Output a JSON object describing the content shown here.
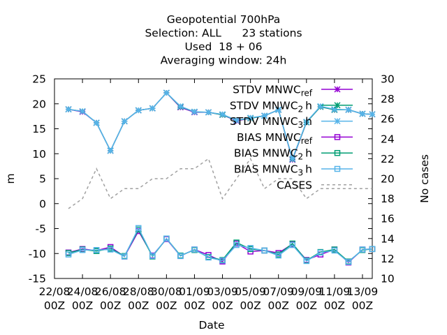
{
  "chart_data": {
    "type": "line",
    "title_lines": [
      "Geopotential 700hPa",
      "Selection: ALL      23 stations",
      "Used  18 + 06",
      "Averaging window: 24h"
    ],
    "xlabel": "Date",
    "ylabel": "m",
    "y2label": "No cases",
    "ylim": [
      -15,
      25
    ],
    "y2lim": [
      10,
      30
    ],
    "y_ticks": [
      "-15",
      "-10",
      "-5",
      "0",
      "5",
      "10",
      "15",
      "20",
      "25"
    ],
    "y2_ticks": [
      "10",
      "12",
      "14",
      "16",
      "18",
      "20",
      "22",
      "24",
      "26",
      "28",
      "30"
    ],
    "x_ticks": [
      {
        "d": 0,
        "top": "22/08",
        "bottom": "00Z"
      },
      {
        "d": 2,
        "top": "24/08",
        "bottom": "00Z"
      },
      {
        "d": 4,
        "top": "26/08",
        "bottom": "00Z"
      },
      {
        "d": 6,
        "top": "28/08",
        "bottom": "00Z"
      },
      {
        "d": 8,
        "top": "30/08",
        "bottom": "00Z"
      },
      {
        "d": 10,
        "top": "01/09",
        "bottom": "00Z"
      },
      {
        "d": 12,
        "top": "03/09",
        "bottom": "00Z"
      },
      {
        "d": 14,
        "top": "05/09",
        "bottom": "00Z"
      },
      {
        "d": 16,
        "top": "07/09",
        "bottom": "00Z"
      },
      {
        "d": 18,
        "top": "09/09",
        "bottom": "00Z"
      },
      {
        "d": 20,
        "top": "11/09",
        "bottom": "00Z"
      },
      {
        "d": 22,
        "top": "13/09",
        "bottom": "00Z"
      }
    ],
    "xlim": [
      0,
      22.7
    ],
    "x": [
      1,
      2,
      3,
      4,
      5,
      6,
      7,
      8,
      9,
      10,
      11,
      12,
      13,
      14,
      15,
      16,
      17,
      18,
      19,
      20,
      21,
      22,
      22.7
    ],
    "series": [
      {
        "name": "STDV MNWC_ref",
        "axis": "y",
        "color": "#9400d3",
        "marker": "star",
        "values": [
          18.9,
          18.4,
          16.2,
          10.6,
          16.5,
          18.7,
          19.1,
          22.2,
          19.3,
          18.3,
          18.3,
          17.8,
          16.6,
          17.1,
          17.6,
          18.8,
          8.8,
          16.3,
          19.4,
          18.8,
          18.8,
          18.0,
          17.9
        ]
      },
      {
        "name": "STDV MNWC_2h",
        "axis": "y",
        "color": "#009e73",
        "marker": "star",
        "values": [
          18.9,
          18.5,
          16.2,
          10.6,
          16.5,
          18.7,
          19.1,
          22.2,
          19.4,
          18.4,
          18.3,
          17.8,
          16.7,
          17.1,
          17.6,
          18.8,
          8.9,
          16.3,
          19.4,
          18.8,
          18.8,
          18.0,
          17.9
        ]
      },
      {
        "name": "STDV MNWC_3h",
        "axis": "y",
        "color": "#56b4e9",
        "marker": "star",
        "values": [
          18.9,
          18.5,
          16.2,
          10.6,
          16.5,
          18.7,
          19.1,
          22.2,
          19.5,
          18.4,
          18.3,
          17.9,
          16.7,
          17.2,
          17.6,
          18.8,
          9.0,
          16.4,
          19.5,
          18.9,
          18.8,
          18.0,
          17.9
        ]
      },
      {
        "name": "BIAS MNWC_ref",
        "axis": "y",
        "color": "#9400d3",
        "marker": "square",
        "values": [
          -9.8,
          -9.1,
          -9.4,
          -8.7,
          -10.6,
          -5.5,
          -10.4,
          -7.1,
          -10.5,
          -9.2,
          -10.3,
          -11.6,
          -8.0,
          -9.6,
          -9.4,
          -9.9,
          -8.1,
          -11.3,
          -10.2,
          -9.2,
          -11.8,
          -9.2,
          -9.1
        ]
      },
      {
        "name": "BIAS MNWC_2h",
        "axis": "y",
        "color": "#009e73",
        "marker": "square",
        "values": [
          -9.9,
          -9.2,
          -9.5,
          -9.0,
          -10.5,
          -5.2,
          -10.6,
          -7.0,
          -10.4,
          -9.3,
          -10.7,
          -11.3,
          -7.8,
          -9.1,
          -9.4,
          -10.2,
          -8.0,
          -11.4,
          -9.7,
          -9.2,
          -11.6,
          -9.3,
          -9.1
        ]
      },
      {
        "name": "BIAS MNWC_3h",
        "axis": "y",
        "color": "#56b4e9",
        "marker": "square",
        "values": [
          -10.2,
          -9.3,
          -9.3,
          -9.2,
          -10.6,
          -4.9,
          -10.5,
          -7.0,
          -10.5,
          -9.2,
          -10.8,
          -11.4,
          -8.3,
          -8.9,
          -9.4,
          -10.4,
          -8.3,
          -11.5,
          -9.8,
          -9.4,
          -11.7,
          -9.2,
          -9.1
        ]
      },
      {
        "name": "CASES",
        "axis": "y2",
        "color": "#a0a0a0",
        "marker": "none",
        "dash": true,
        "values": [
          17,
          18,
          21,
          18,
          19,
          19,
          20,
          20,
          21,
          21,
          22,
          18,
          20,
          22,
          19,
          20,
          20,
          18,
          19,
          19,
          19,
          19,
          19
        ]
      }
    ],
    "legend": [
      {
        "base": "STDV MNWC",
        "sub": "ref",
        "color": "#9400d3",
        "marker": "star"
      },
      {
        "base": "STDV MNWC",
        "sub": "2",
        "tail": "h",
        "color": "#009e73",
        "marker": "star"
      },
      {
        "base": "STDV MNWC",
        "sub": "3",
        "tail": "h",
        "color": "#56b4e9",
        "marker": "star"
      },
      {
        "base": "BIAS MNWC",
        "sub": "ref",
        "color": "#9400d3",
        "marker": "square"
      },
      {
        "base": "BIAS MNWC",
        "sub": "2",
        "tail": "h",
        "color": "#009e73",
        "marker": "square"
      },
      {
        "base": "BIAS MNWC",
        "sub": "3",
        "tail": "h",
        "color": "#56b4e9",
        "marker": "square"
      },
      {
        "base": "CASES",
        "color": "#a0a0a0",
        "marker": "none",
        "dash": true
      }
    ],
    "legend_position": "top-right",
    "grid": false
  }
}
